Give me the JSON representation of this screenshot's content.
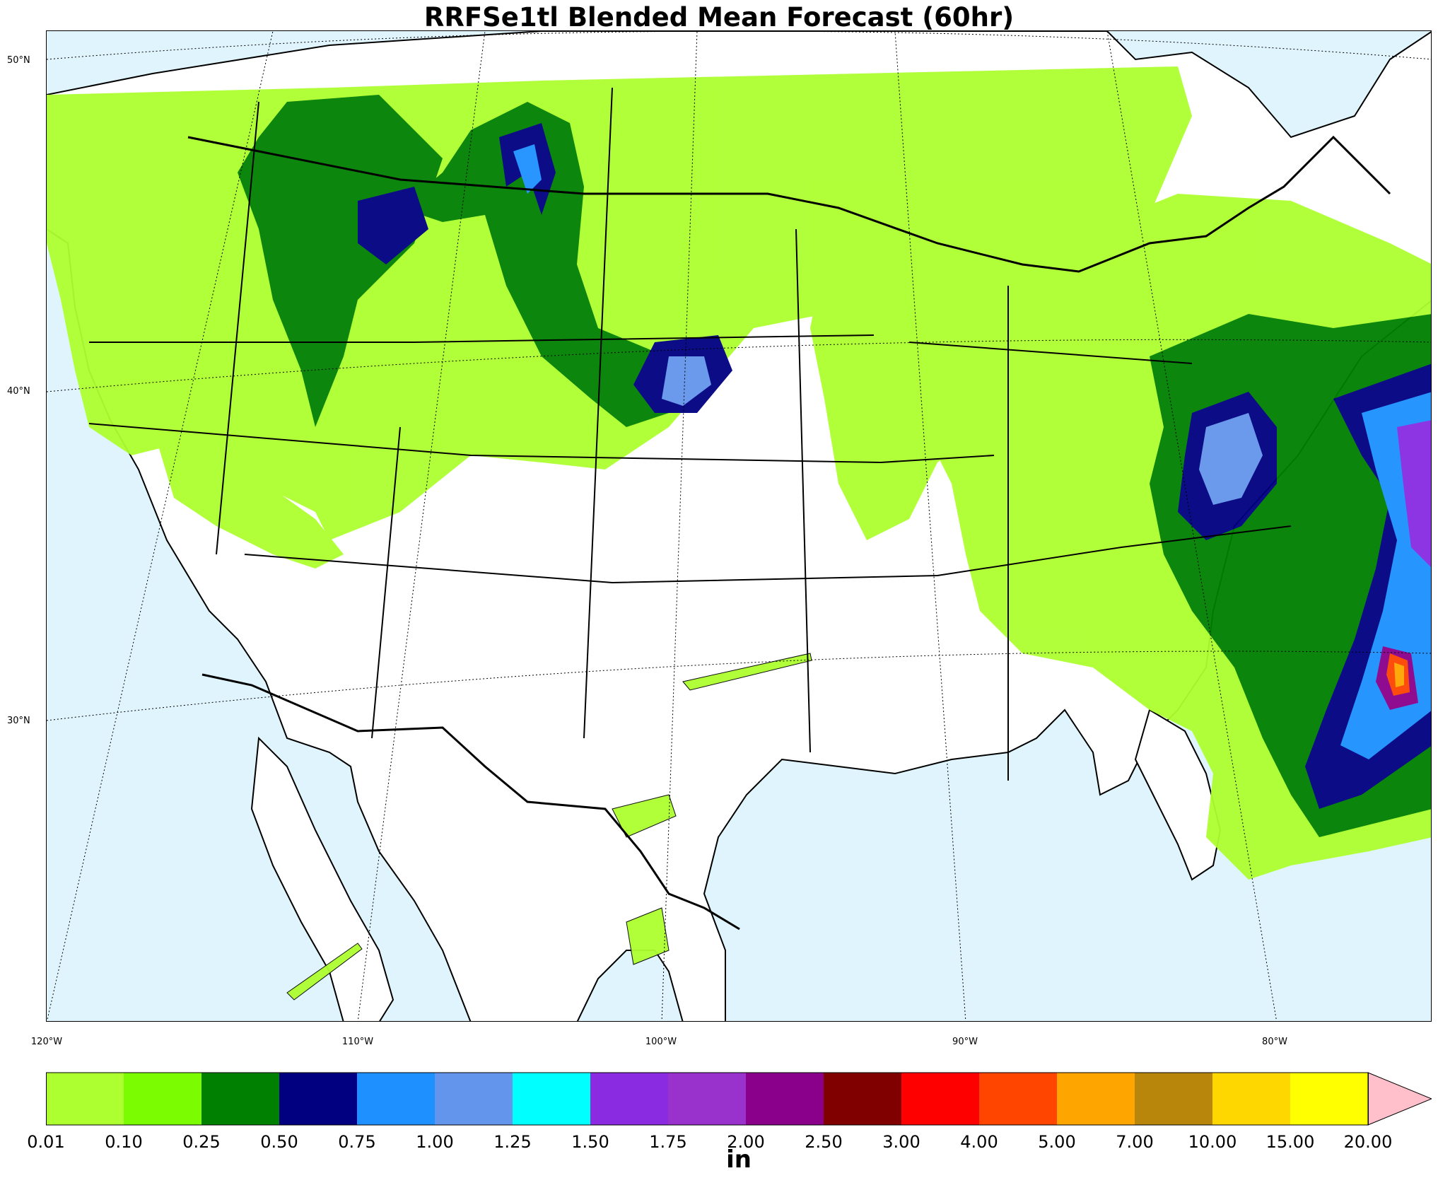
{
  "title": "RRFSe1tl Blended Mean Forecast (60hr)",
  "lat_labels": [
    "50°N",
    "40°N",
    "30°N"
  ],
  "lon_labels": [
    "120°W",
    "110°W",
    "100°W",
    "90°W",
    "80°W"
  ],
  "colorbar": {
    "units": "in",
    "ticks": [
      "0.01",
      "0.10",
      "0.25",
      "0.50",
      "0.75",
      "1.00",
      "1.25",
      "1.50",
      "1.75",
      "2.00",
      "2.50",
      "3.00",
      "4.00",
      "5.00",
      "7.00",
      "10.00",
      "15.00",
      "20.00"
    ],
    "colors": [
      "#adff2f",
      "#7cfc00",
      "#008000",
      "#000080",
      "#1e90ff",
      "#6495ed",
      "#00ffff",
      "#8a2be2",
      "#9932cc",
      "#8b008b",
      "#800000",
      "#ff0000",
      "#ff4500",
      "#ffa500",
      "#b8860b",
      "#ffd700",
      "#ffff00"
    ],
    "extend_color": "#ffc0cb"
  },
  "colors": {
    "water": "#dff4fd",
    "land": "#ffffff"
  }
}
